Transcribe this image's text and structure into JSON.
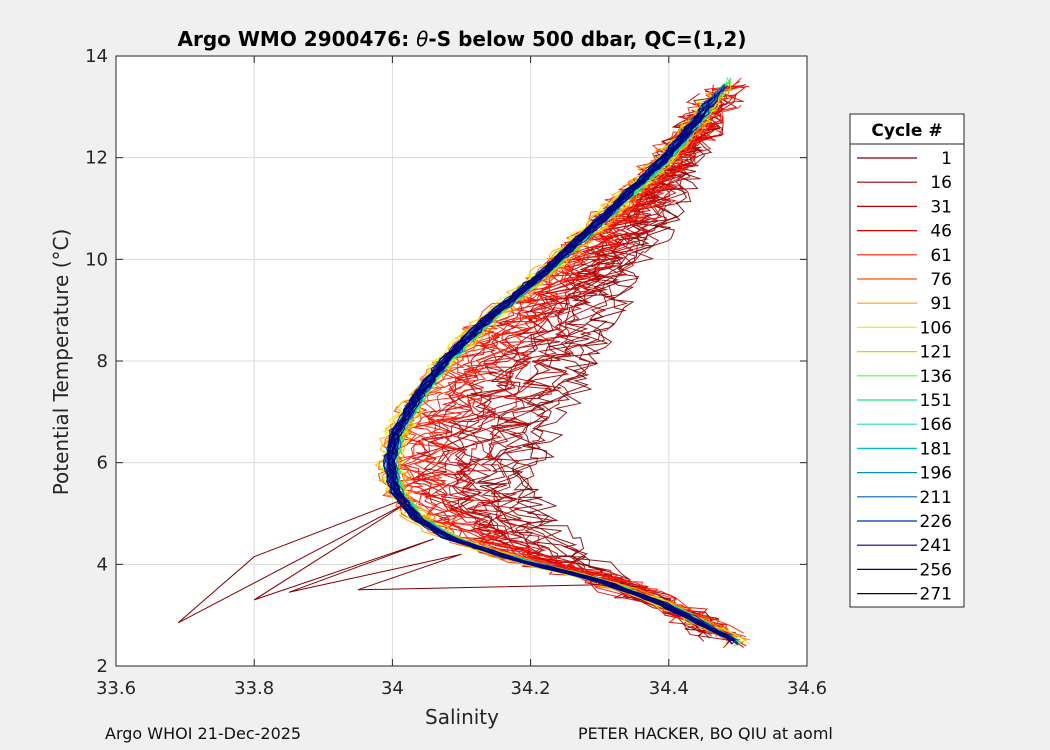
{
  "chart_data": {
    "type": "line",
    "title_prefix": "Argo WMO 2900476: ",
    "title_theta": "θ",
    "title_suffix": "-S below 500 dbar,  QC=(1,2)",
    "xlabel": "Salinity",
    "ylabel": "Potential Temperature (°C)",
    "xlim": [
      33.6,
      34.6
    ],
    "ylim": [
      2,
      14
    ],
    "xticks": [
      33.6,
      33.8,
      34.0,
      34.2,
      34.4,
      34.6
    ],
    "xtick_labels": [
      "33.6",
      "33.8",
      "34",
      "34.2",
      "34.4",
      "34.6"
    ],
    "yticks": [
      2,
      4,
      6,
      8,
      10,
      12,
      14
    ],
    "ytick_labels": [
      "2",
      "4",
      "6",
      "8",
      "10",
      "12",
      "14"
    ],
    "grid": true,
    "legend_title": "Cycle #",
    "legend_position": "right",
    "series": [
      {
        "name": "1",
        "color": "#800000"
      },
      {
        "name": "16",
        "color": "#a00000"
      },
      {
        "name": "31",
        "color": "#c00000"
      },
      {
        "name": "46",
        "color": "#e00000"
      },
      {
        "name": "61",
        "color": "#ff1a00"
      },
      {
        "name": "76",
        "color": "#ff5500"
      },
      {
        "name": "91",
        "color": "#ffa500"
      },
      {
        "name": "106",
        "color": "#f0f000"
      },
      {
        "name": "121",
        "color": "#a0f000"
      },
      {
        "name": "136",
        "color": "#60f040"
      },
      {
        "name": "151",
        "color": "#20e080"
      },
      {
        "name": "166",
        "color": "#20e0b0"
      },
      {
        "name": "181",
        "color": "#00c0d0"
      },
      {
        "name": "196",
        "color": "#0090c0"
      },
      {
        "name": "211",
        "color": "#0060c0"
      },
      {
        "name": "226",
        "color": "#0030b0"
      },
      {
        "name": "241",
        "color": "#000090"
      },
      {
        "name": "256",
        "color": "#000080"
      },
      {
        "name": "271",
        "color": "#000070"
      }
    ],
    "typical_profile": {
      "salinity": [
        34.5,
        34.47,
        34.4,
        34.3,
        34.18,
        34.09,
        34.04,
        34.01,
        34.0,
        34.01,
        34.04,
        34.08,
        34.14,
        34.22,
        34.3,
        34.4,
        34.49
      ],
      "theta": [
        2.5,
        2.7,
        3.2,
        3.7,
        4.1,
        4.5,
        4.9,
        5.4,
        6.0,
        6.6,
        7.3,
        8.0,
        8.8,
        9.7,
        10.7,
        12.0,
        13.5
      ]
    },
    "early_profile": {
      "salinity": [
        34.48,
        34.42,
        34.33,
        34.26,
        34.22,
        34.2,
        34.22,
        34.26,
        34.3,
        34.33,
        34.38,
        34.43,
        34.48
      ],
      "theta": [
        2.6,
        3.0,
        3.6,
        4.2,
        4.9,
        5.6,
        6.4,
        7.3,
        8.3,
        9.3,
        10.5,
        12.0,
        13.4
      ]
    }
  },
  "footer": {
    "left": "Argo WHOI 21-Dec-2025",
    "right": "PETER HACKER, BO QIU at aoml"
  }
}
